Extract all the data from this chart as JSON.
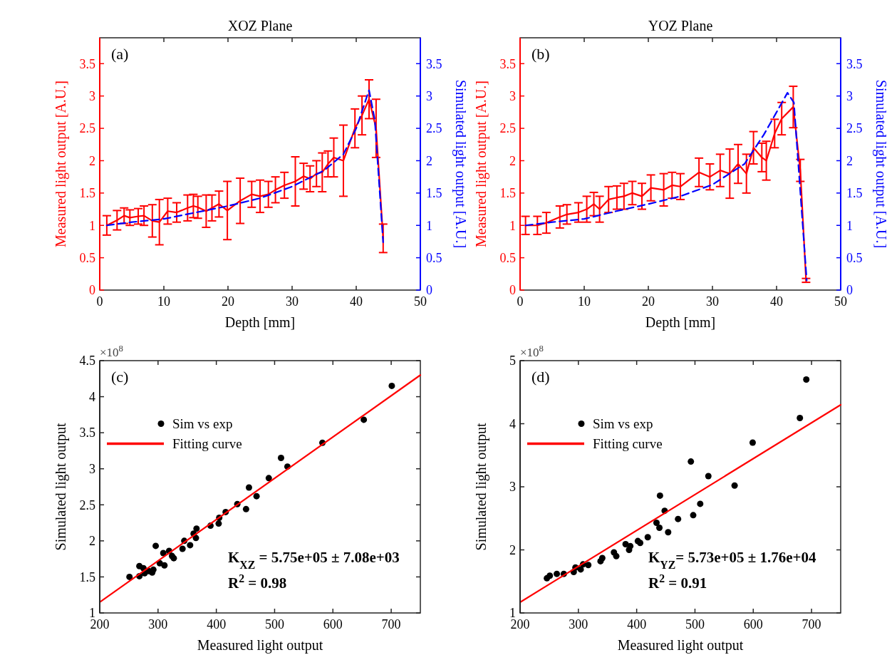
{
  "chart_data": [
    {
      "type": "line",
      "title": "XOZ Plane",
      "xlabel": "Depth [mm]",
      "ylabel": "Measured light output [A.U.]",
      "y2label": "Simulated light output [A.U.]",
      "annotations": [
        "(a)"
      ],
      "xlim": [
        0,
        50
      ],
      "xticks": [
        0,
        10,
        20,
        30,
        40,
        50
      ],
      "ylim": [
        0,
        3.9
      ],
      "yticks": [
        0,
        0.5,
        1,
        1.5,
        2,
        2.5,
        3,
        3.5
      ],
      "y2lim": [
        0,
        3.9
      ],
      "y2ticks": [
        0,
        0.5,
        1,
        1.5,
        2,
        2.5,
        3,
        3.5
      ],
      "series": [
        {
          "color": "#ff0000",
          "line_style": "solid",
          "x": [
            1.1,
            2.7,
            3.8,
            4.7,
            6.0,
            6.9,
            8.2,
            9.3,
            10.6,
            12.0,
            13.7,
            14.6,
            15.3,
            16.6,
            17.5,
            18.6,
            19.9,
            21.9,
            23.7,
            25.0,
            26.3,
            27.4,
            28.8,
            30.5,
            31.8,
            32.8,
            33.8,
            34.7,
            35.6,
            36.5,
            38.0,
            39.8,
            40.9,
            42.0,
            43.1,
            44.2
          ],
          "values": [
            1.0,
            1.08,
            1.15,
            1.12,
            1.14,
            1.15,
            1.07,
            1.05,
            1.22,
            1.2,
            1.27,
            1.3,
            1.28,
            1.22,
            1.27,
            1.33,
            1.23,
            1.38,
            1.48,
            1.45,
            1.48,
            1.55,
            1.62,
            1.68,
            1.76,
            1.72,
            1.8,
            1.82,
            1.95,
            2.05,
            2.0,
            2.5,
            2.7,
            2.95,
            2.5,
            0.8
          ],
          "errors": [
            0.15,
            0.15,
            0.12,
            0.12,
            0.12,
            0.15,
            0.25,
            0.35,
            0.2,
            0.15,
            0.2,
            0.18,
            0.17,
            0.25,
            0.2,
            0.2,
            0.45,
            0.35,
            0.2,
            0.25,
            0.2,
            0.2,
            0.2,
            0.38,
            0.2,
            0.2,
            0.2,
            0.3,
            0.2,
            0.3,
            0.55,
            0.3,
            0.3,
            0.3,
            0.45,
            0.22
          ]
        },
        {
          "color": "#0000ff",
          "line_style": "dashed",
          "axis": "y2",
          "x": [
            1.1,
            5,
            10,
            15,
            20,
            25,
            30,
            35,
            38,
            40,
            42.0,
            42.9,
            44.2
          ],
          "values": [
            1.0,
            1.05,
            1.1,
            1.2,
            1.3,
            1.42,
            1.6,
            1.85,
            2.1,
            2.5,
            3.09,
            2.63,
            0.74
          ]
        }
      ]
    },
    {
      "type": "line",
      "title": "YOZ Plane",
      "xlabel": "Depth [mm]",
      "ylabel": "Measured light output [A.U.]",
      "y2label": "Simulated light output [A.U.]",
      "annotations": [
        "(b)"
      ],
      "xlim": [
        0,
        50
      ],
      "xticks": [
        0,
        10,
        20,
        30,
        40,
        50
      ],
      "ylim": [
        0,
        3.9
      ],
      "yticks": [
        0,
        0.5,
        1,
        1.5,
        2,
        2.5,
        3,
        3.5
      ],
      "y2lim": [
        0,
        3.9
      ],
      "y2ticks": [
        0,
        0.5,
        1,
        1.5,
        2,
        2.5,
        3,
        3.5
      ],
      "series": [
        {
          "color": "#ff0000",
          "line_style": "solid",
          "x": [
            0.85,
            2.7,
            4.1,
            6.2,
            7.3,
            9.1,
            10.4,
            11.5,
            12.4,
            13.8,
            15.1,
            16.2,
            17.5,
            19.0,
            20.4,
            22.4,
            23.7,
            25.0,
            27.9,
            29.6,
            31.2,
            32.7,
            34.0,
            35.3,
            36.4,
            37.7,
            38.4,
            39.7,
            40.8,
            42.6,
            43.7,
            44.6
          ],
          "values": [
            1.0,
            1.0,
            1.04,
            1.13,
            1.17,
            1.2,
            1.25,
            1.33,
            1.25,
            1.4,
            1.43,
            1.45,
            1.5,
            1.45,
            1.58,
            1.55,
            1.62,
            1.6,
            1.82,
            1.75,
            1.85,
            1.8,
            1.95,
            1.8,
            2.2,
            2.05,
            2.0,
            2.42,
            2.65,
            2.83,
            1.85,
            0.15
          ],
          "errors": [
            0.14,
            0.14,
            0.16,
            0.17,
            0.15,
            0.15,
            0.2,
            0.18,
            0.2,
            0.2,
            0.18,
            0.2,
            0.18,
            0.2,
            0.2,
            0.25,
            0.2,
            0.2,
            0.22,
            0.2,
            0.25,
            0.38,
            0.3,
            0.3,
            0.25,
            0.22,
            0.3,
            0.22,
            0.25,
            0.32,
            0.17,
            0.03
          ]
        },
        {
          "color": "#0000ff",
          "line_style": "dashed",
          "axis": "y2",
          "x": [
            0.85,
            5,
            10,
            15,
            20,
            25,
            30,
            35,
            38,
            40,
            41.7,
            42.7,
            44.7
          ],
          "values": [
            1.0,
            1.05,
            1.1,
            1.22,
            1.33,
            1.45,
            1.63,
            1.95,
            2.4,
            2.75,
            3.05,
            2.9,
            0.15
          ]
        }
      ]
    },
    {
      "type": "scatter",
      "xlabel": "Measured light output",
      "ylabel": "Simulated light output",
      "annotations": [
        "(c)",
        "×10$^{8}$",
        "K$_{XZ}$ = 5.75e+05 ± 7.08e+03",
        "R$^{2}$ = 0.98"
      ],
      "xlim": [
        200,
        750
      ],
      "xticks": [
        200,
        300,
        400,
        500,
        600,
        700
      ],
      "ylim": [
        1,
        4.5
      ],
      "yticks": [
        1,
        1.5,
        2,
        2.5,
        3,
        3.5,
        4,
        4.5
      ],
      "legend": "top left",
      "series": [
        {
          "name": "Sim vs exp",
          "color": "#000000",
          "marker": "circle",
          "x": [
            251,
            268,
            268,
            275,
            277,
            284,
            290,
            292,
            296,
            303,
            309,
            311,
            319,
            324,
            327,
            342,
            345,
            355,
            361,
            365,
            366,
            390,
            404,
            405,
            416,
            436,
            451,
            456,
            469,
            490,
            511,
            522,
            582,
            653,
            701
          ],
          "values": [
            1.5,
            1.65,
            1.51,
            1.62,
            1.55,
            1.58,
            1.56,
            1.6,
            1.93,
            1.69,
            1.83,
            1.66,
            1.86,
            1.79,
            1.76,
            1.89,
            2.0,
            1.94,
            2.1,
            2.04,
            2.17,
            2.21,
            2.24,
            2.32,
            2.4,
            2.51,
            2.44,
            2.74,
            2.62,
            2.87,
            3.15,
            3.03,
            3.36,
            3.68,
            4.15
          ]
        },
        {
          "name": "Fitting curve",
          "type": "line",
          "color": "#ff0000",
          "line_style": "solid",
          "x": [
            200,
            750
          ],
          "values": [
            1.15,
            4.3
          ]
        }
      ]
    },
    {
      "type": "scatter",
      "xlabel": "Measured light output",
      "ylabel": "Simulated light output",
      "annotations": [
        "(d)",
        "×10$^{8}$",
        "K$_{YZ}$= 5.73e+05 ± 1.76e+04",
        "R$^{2}$ = 0.91"
      ],
      "xlim": [
        200,
        750
      ],
      "xticks": [
        200,
        300,
        400,
        500,
        600,
        700
      ],
      "ylim": [
        1,
        5
      ],
      "yticks": [
        1,
        2,
        3,
        4,
        5
      ],
      "legend": "top left",
      "series": [
        {
          "name": "Sim vs exp",
          "color": "#000000",
          "marker": "circle",
          "x": [
            246,
            251,
            263,
            275,
            292,
            295,
            304,
            308,
            317,
            338,
            341,
            361,
            365,
            381,
            387,
            389,
            402,
            406,
            419,
            434,
            439,
            440,
            448,
            454,
            471,
            493,
            497,
            509,
            523,
            568,
            599,
            680,
            691
          ],
          "values": [
            1.55,
            1.59,
            1.62,
            1.62,
            1.65,
            1.72,
            1.69,
            1.77,
            1.76,
            1.82,
            1.87,
            1.96,
            1.9,
            2.09,
            2.0,
            2.06,
            2.14,
            2.11,
            2.2,
            2.43,
            2.35,
            2.86,
            2.62,
            2.28,
            2.49,
            3.4,
            2.55,
            2.73,
            3.17,
            3.02,
            3.7,
            4.09,
            4.7
          ]
        },
        {
          "name": "Fitting curve",
          "type": "line",
          "color": "#ff0000",
          "line_style": "solid",
          "x": [
            200,
            750
          ],
          "values": [
            1.17,
            4.3
          ]
        }
      ]
    }
  ]
}
